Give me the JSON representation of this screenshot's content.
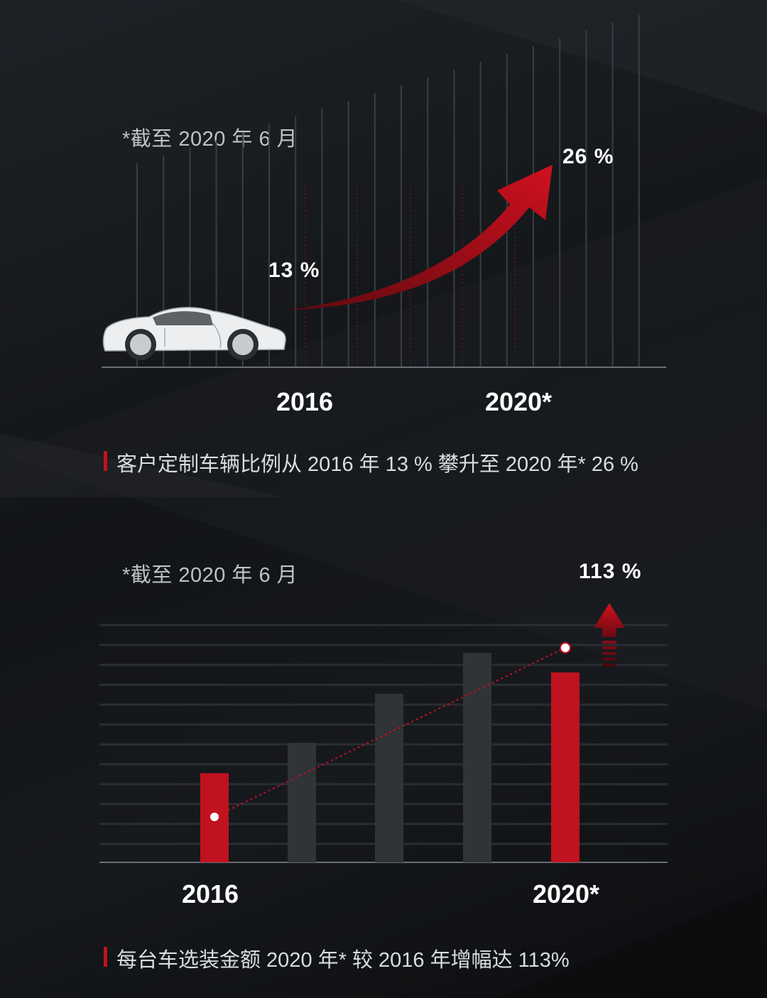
{
  "colors": {
    "accent": "#c1121f",
    "bar_gray": "#303337",
    "background": "#121417"
  },
  "icons": {
    "car": "sports-car-illustration",
    "arrow1": "curved-up-arrow-icon",
    "arrow2": "up-arrow-icon"
  },
  "panel1": {
    "note": "*截至 2020 年 6 月",
    "start_label": "13 %",
    "end_label": "26 %",
    "year_start": "2016",
    "year_end": "2020*",
    "caption": "客户定制车辆比例从 2016 年 13 % 攀升至 2020 年* 26 %"
  },
  "panel2": {
    "note": "*截至 2020 年 6 月",
    "end_label": "113 %",
    "year_start": "2016",
    "year_end": "2020*",
    "caption": "每台车选装金额 2020 年* 较 2016 年增幅达 113%"
  },
  "chart_data": [
    {
      "type": "line",
      "title": "",
      "x": [
        "2016",
        "2020*"
      ],
      "values": [
        13,
        26
      ],
      "unit": "%",
      "xlabel": "",
      "ylabel": ""
    },
    {
      "type": "bar",
      "title": "",
      "categories": [
        "2016",
        "",
        "",
        "",
        "2020*"
      ],
      "values": [
        100,
        134,
        189,
        235,
        213
      ],
      "highlight": [
        true,
        false,
        false,
        false,
        true
      ],
      "growth_label": "113 %",
      "ylim": [
        0,
        290
      ],
      "grid": true,
      "xlabel": "",
      "ylabel": ""
    }
  ]
}
